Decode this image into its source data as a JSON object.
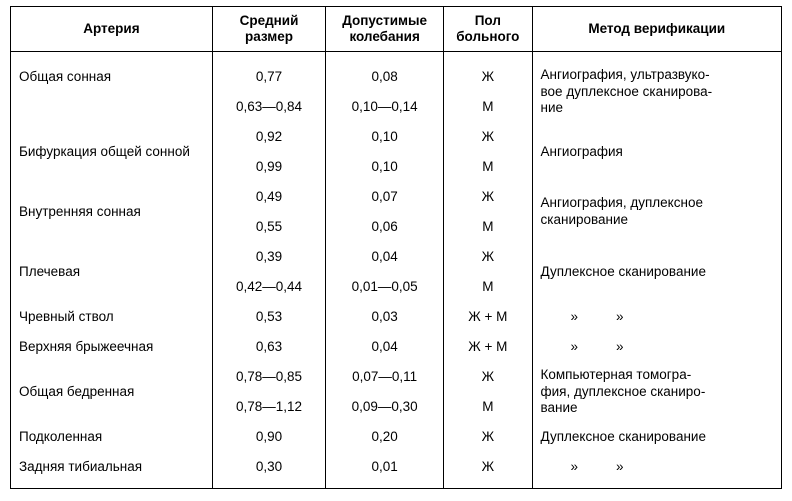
{
  "columns": {
    "artery": "Артерия",
    "avg_size": "Средний размер",
    "tolerance": "Допустимые колебания",
    "sex": "Пол больного",
    "method": "Метод верификации"
  },
  "rows": [
    {
      "artery": "Общая сонная",
      "size": "0,77",
      "var": "0,08",
      "sex": "Ж"
    },
    {
      "artery": "",
      "size": "0,63—0,84",
      "var": "0,10—0,14",
      "sex": "М"
    },
    {
      "artery": "Бифуркация общей сонной",
      "size": "0,92",
      "var": "0,10",
      "sex": "Ж"
    },
    {
      "artery": "",
      "size": "0,99",
      "var": "0,10",
      "sex": "М"
    },
    {
      "artery": "Внутренняя сонная",
      "size": "0,49",
      "var": "0,07",
      "sex": "Ж"
    },
    {
      "artery": "",
      "size": "0,55",
      "var": "0,06",
      "sex": "М"
    },
    {
      "artery": "Плечевая",
      "size": "0,39",
      "var": "0,04",
      "sex": "Ж"
    },
    {
      "artery": "",
      "size": "0,42—0,44",
      "var": "0,01—0,05",
      "sex": "М"
    },
    {
      "artery": "Чревный ствол",
      "size": "0,53",
      "var": "0,03",
      "sex": "Ж + М"
    },
    {
      "artery": "Верхняя брыжеечная",
      "size": "0,63",
      "var": "0,04",
      "sex": "Ж + М"
    },
    {
      "artery": "Общая бедренная",
      "size": "0,78—0,85",
      "var": "0,07—0,11",
      "sex": "Ж"
    },
    {
      "artery": "",
      "size": "0,78—1,12",
      "var": "0,09—0,30",
      "sex": "М"
    },
    {
      "artery": "Подколенная",
      "size": "0,90",
      "var": "0,20",
      "sex": "Ж"
    },
    {
      "artery": "Задняя тибиальная",
      "size": "0,30",
      "var": "0,01",
      "sex": "Ж"
    }
  ],
  "methods": {
    "m0": "Ангиография, ультразвуко-",
    "m0b": "вое дуплексное сканирова-",
    "m0c": "ние",
    "m1": "Ангиография",
    "m2": "Ангиография, дуплексное",
    "m2b": "сканирование",
    "m3": "Дуплексное сканирование",
    "m4": "»»",
    "m5": "»»",
    "m6": "Компьютерная томогра-",
    "m6b": "фия, дуплексное сканиро-",
    "m6c": "вание",
    "m7": "Дуплексное сканирование",
    "m8": "»»"
  }
}
